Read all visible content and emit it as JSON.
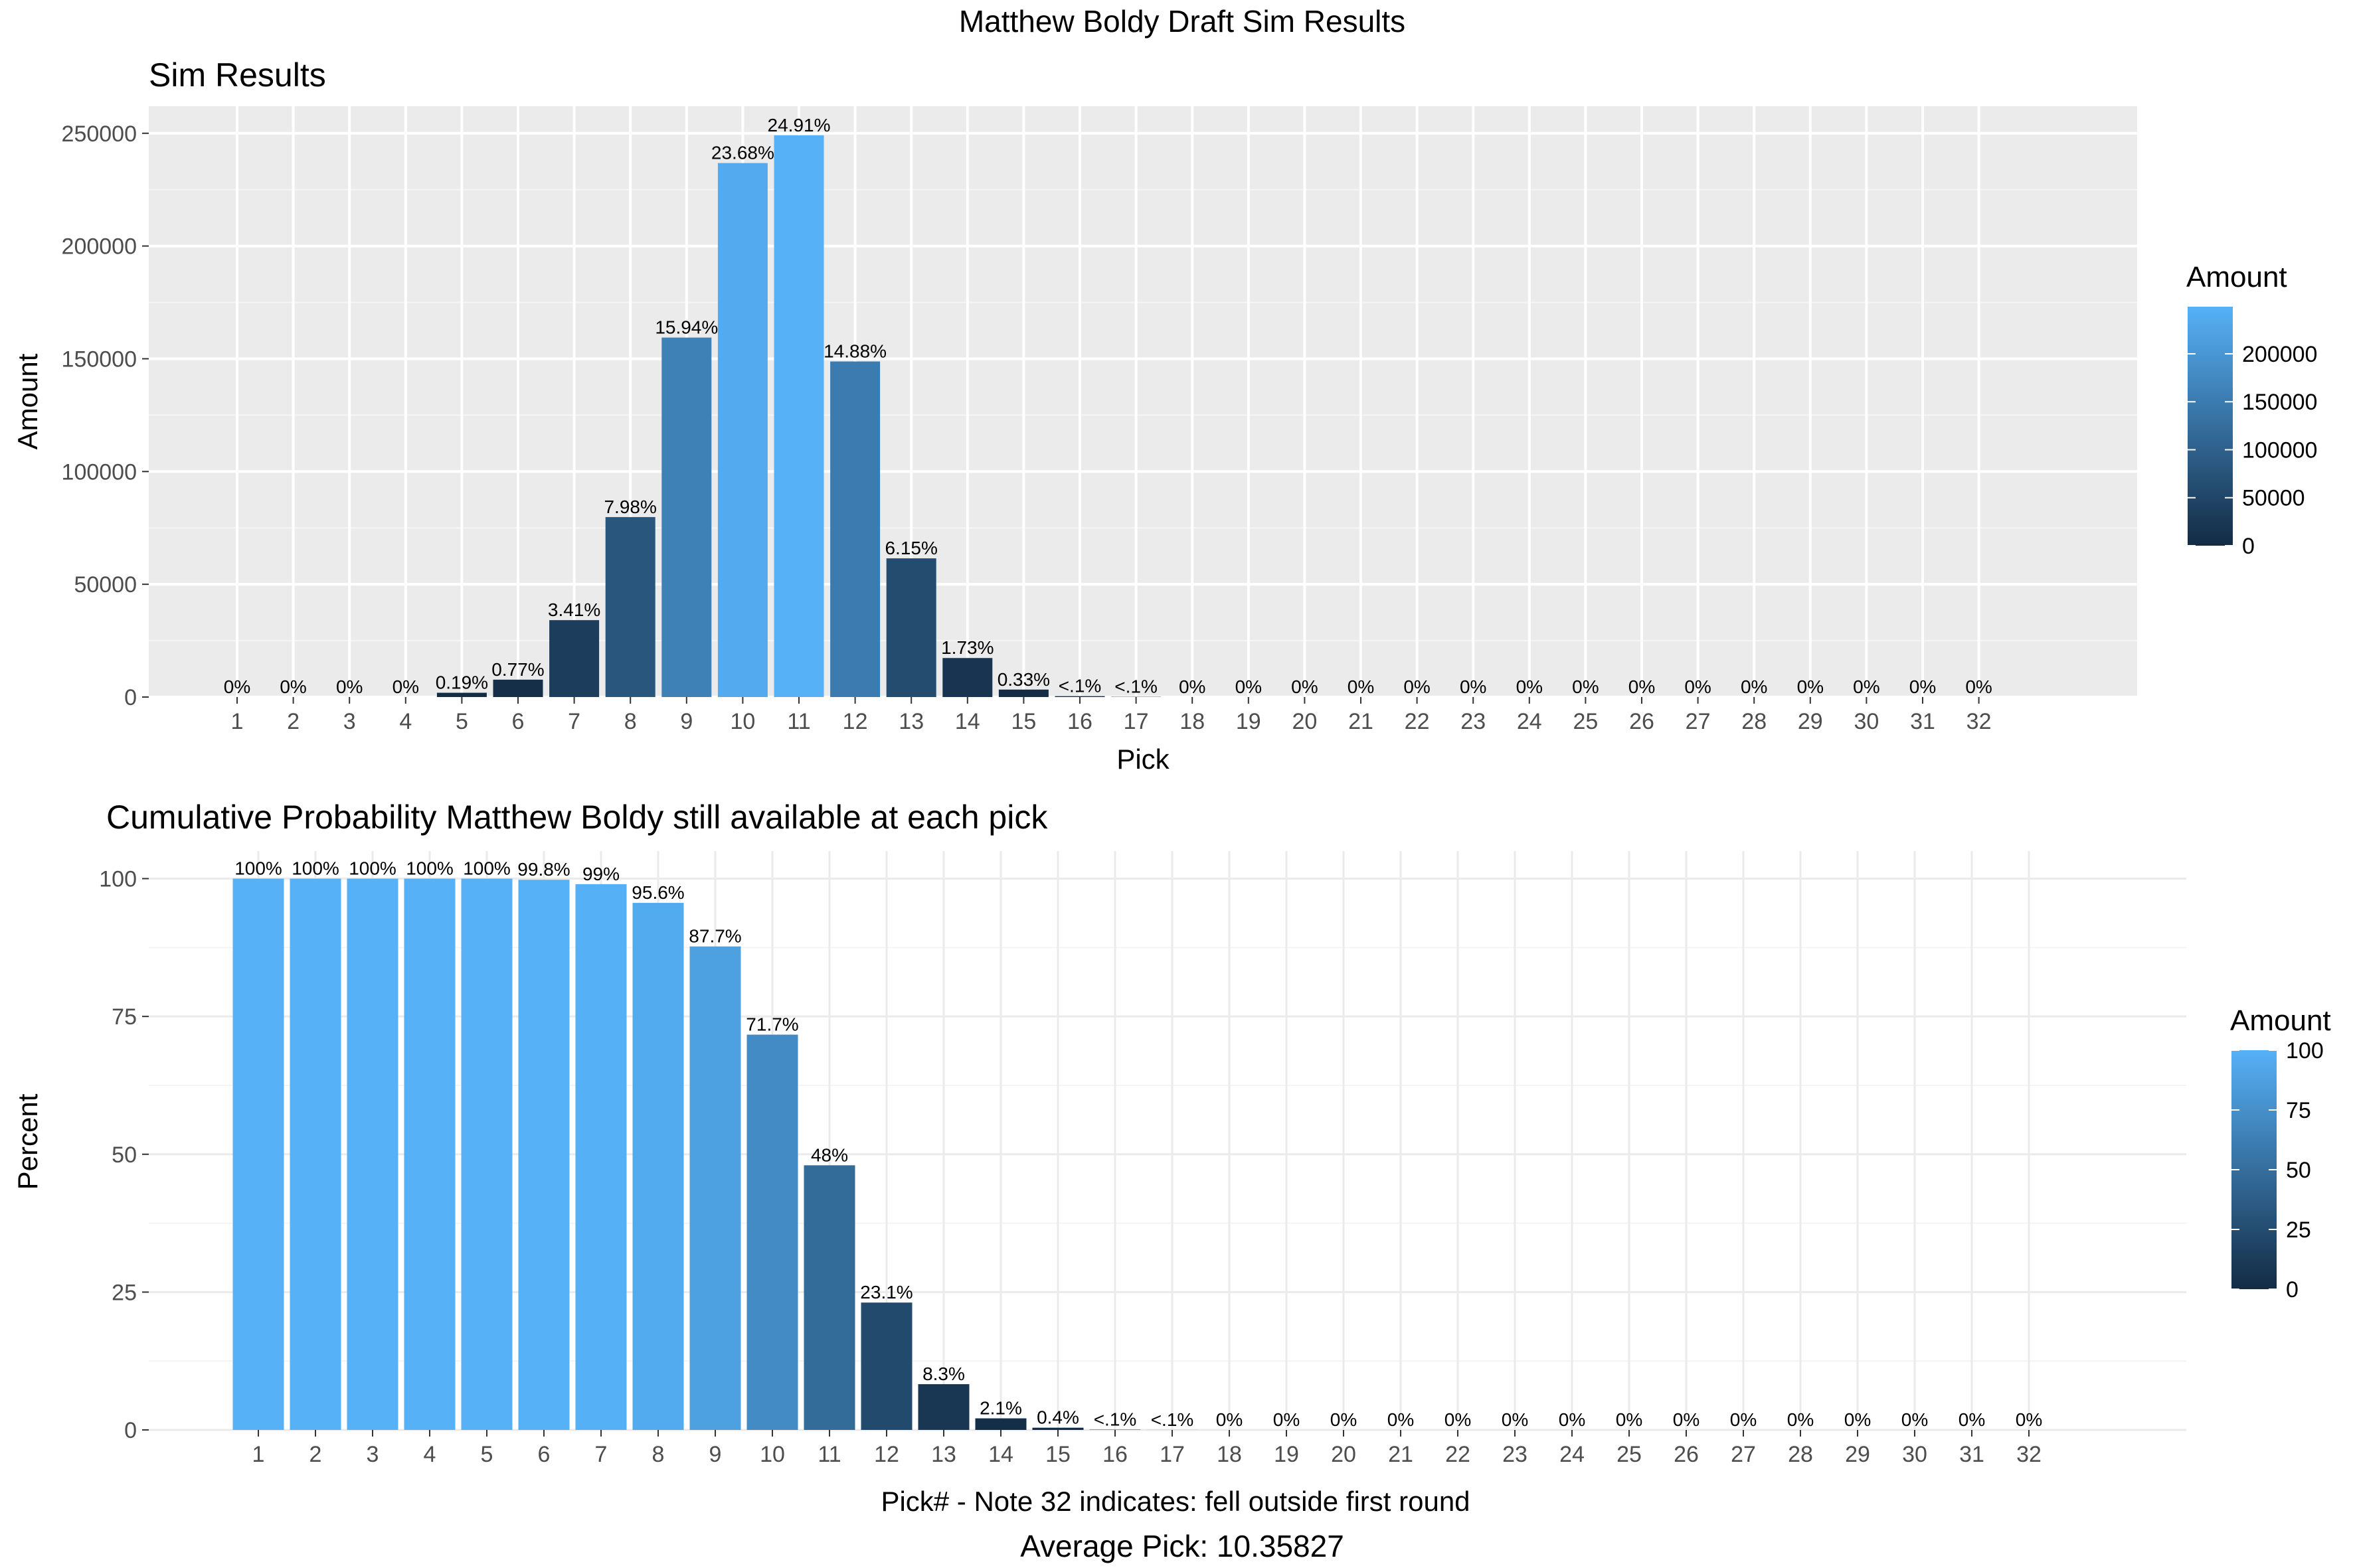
{
  "figure": {
    "suptitle": "Matthew Boldy Draft Sim Results",
    "footer": "Average Pick: 10.35827"
  },
  "chart_data": [
    {
      "type": "bar",
      "title": "Sim Results",
      "xlabel": "Pick",
      "ylabel": "Amount",
      "categories": [
        "1",
        "2",
        "3",
        "4",
        "5",
        "6",
        "7",
        "8",
        "9",
        "10",
        "11",
        "12",
        "13",
        "14",
        "15",
        "16",
        "17",
        "18",
        "19",
        "20",
        "21",
        "22",
        "23",
        "24",
        "25",
        "26",
        "27",
        "28",
        "29",
        "30",
        "31",
        "32"
      ],
      "values": [
        0,
        0,
        0,
        0,
        1900,
        7700,
        34100,
        79800,
        159400,
        236800,
        249100,
        148800,
        61500,
        17300,
        3300,
        400,
        100,
        0,
        0,
        0,
        0,
        0,
        0,
        0,
        0,
        0,
        0,
        0,
        0,
        0,
        0,
        0
      ],
      "data_labels": [
        "0%",
        "0%",
        "0%",
        "0%",
        "0.19%",
        "0.77%",
        "3.41%",
        "7.98%",
        "15.94%",
        "23.68%",
        "24.91%",
        "14.88%",
        "6.15%",
        "1.73%",
        "0.33%",
        "<.1%",
        "<.1%",
        "0%",
        "0%",
        "0%",
        "0%",
        "0%",
        "0%",
        "0%",
        "0%",
        "0%",
        "0%",
        "0%",
        "0%",
        "0%",
        "0%",
        "0%"
      ],
      "ylim": [
        0,
        262000
      ],
      "yticks": [
        0,
        50000,
        100000,
        150000,
        200000,
        250000
      ],
      "ytick_labels": [
        "0",
        "50000",
        "100000",
        "150000",
        "200000",
        "250000"
      ],
      "grid": true,
      "panel_background": "#ebebeb",
      "legend": {
        "title": "Amount",
        "placement": "right",
        "range": [
          0,
          249100
        ],
        "ticks": [
          0,
          50000,
          100000,
          150000,
          200000
        ],
        "tick_labels": [
          "0",
          "50000",
          "100000",
          "150000",
          "200000"
        ],
        "low_color": "#132b43",
        "high_color": "#56b1f7"
      }
    },
    {
      "type": "bar",
      "title": "Cumulative Probability Matthew Boldy still available at each pick",
      "xlabel": "Pick# - Note 32 indicates: fell outside first round",
      "ylabel": "Percent",
      "categories": [
        "1",
        "2",
        "3",
        "4",
        "5",
        "6",
        "7",
        "8",
        "9",
        "10",
        "11",
        "12",
        "13",
        "14",
        "15",
        "16",
        "17",
        "18",
        "19",
        "20",
        "21",
        "22",
        "23",
        "24",
        "25",
        "26",
        "27",
        "28",
        "29",
        "30",
        "31",
        "32"
      ],
      "values": [
        100,
        100,
        100,
        100,
        100,
        99.8,
        99,
        95.6,
        87.7,
        71.7,
        48,
        23.1,
        8.3,
        2.1,
        0.4,
        0.05,
        0.01,
        0,
        0,
        0,
        0,
        0,
        0,
        0,
        0,
        0,
        0,
        0,
        0,
        0,
        0,
        0
      ],
      "data_labels": [
        "100%",
        "100%",
        "100%",
        "100%",
        "100%",
        "99.8%",
        "99%",
        "95.6%",
        "87.7%",
        "71.7%",
        "48%",
        "23.1%",
        "8.3%",
        "2.1%",
        "0.4%",
        "<.1%",
        "<.1%",
        "0%",
        "0%",
        "0%",
        "0%",
        "0%",
        "0%",
        "0%",
        "0%",
        "0%",
        "0%",
        "0%",
        "0%",
        "0%",
        "0%",
        "0%"
      ],
      "ylim": [
        0,
        105
      ],
      "yticks": [
        0,
        25,
        50,
        75,
        100
      ],
      "ytick_labels": [
        "0",
        "25",
        "50",
        "75",
        "100"
      ],
      "grid": true,
      "panel_background": "#ffffff",
      "legend": {
        "title": "Amount",
        "placement": "right",
        "range": [
          0,
          100
        ],
        "ticks": [
          0,
          25,
          50,
          75,
          100
        ],
        "tick_labels": [
          "0",
          "25",
          "50",
          "75",
          "100"
        ],
        "low_color": "#132b43",
        "high_color": "#56b1f7"
      }
    }
  ]
}
